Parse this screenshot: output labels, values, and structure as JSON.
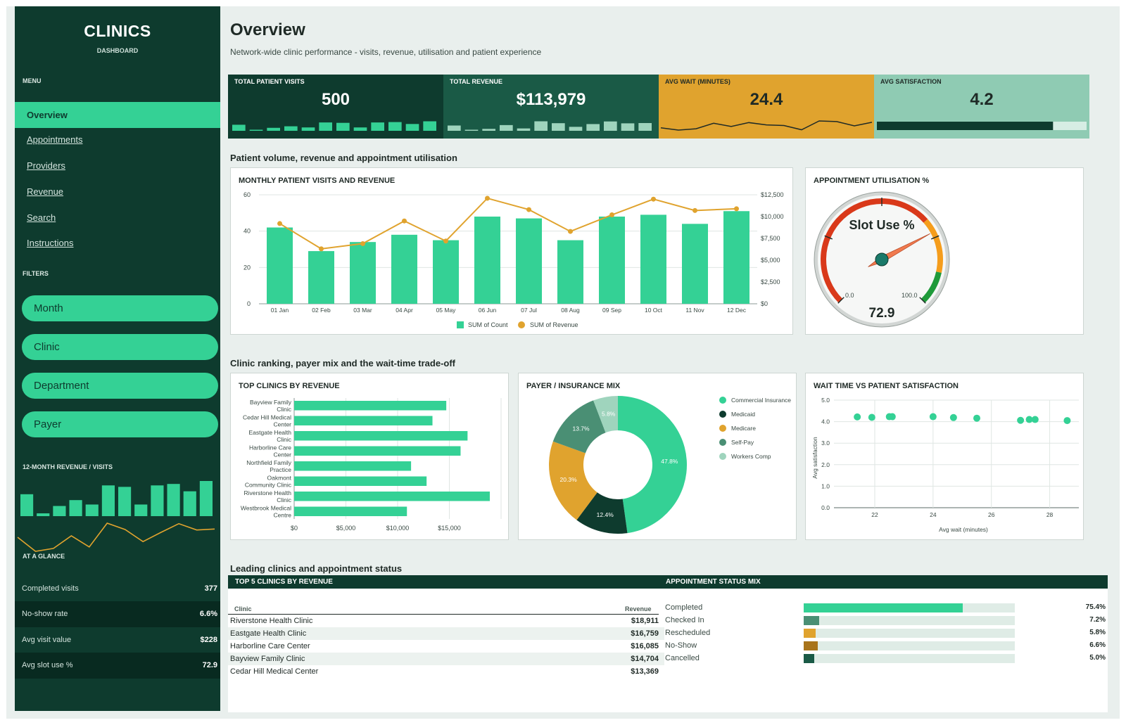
{
  "sidebar": {
    "title": "CLINICS",
    "subtitle": "DASHBOARD",
    "menu_label": "MENU",
    "menu": [
      "Overview",
      "Appointments",
      "Providers",
      "Revenue",
      "Search",
      "Instructions"
    ],
    "active_index": 0,
    "filters_label": "FILTERS",
    "filters": [
      "Month",
      "Clinic",
      "Department",
      "Payer"
    ],
    "mini_chart": {
      "title": "12-MONTH REVENUE  /  VISITS",
      "bars": [
        42,
        29,
        34,
        38,
        35,
        48,
        47,
        35,
        48,
        49,
        44,
        51
      ],
      "line": [
        9200,
        6300,
        6900,
        9500,
        7200,
        12100,
        10800,
        8300,
        10200,
        12000,
        10700,
        10900
      ]
    },
    "glance_label": "AT A GLANCE",
    "glance": [
      {
        "label": "Completed visits",
        "value": "377"
      },
      {
        "label": "No-show rate",
        "value": "6.6%"
      },
      {
        "label": "Avg visit value",
        "value": "$228"
      },
      {
        "label": "Avg slot use %",
        "value": "72.9"
      }
    ]
  },
  "header": {
    "title": "Overview",
    "subtitle": "Network-wide clinic performance - visits, revenue, utilisation and patient experience"
  },
  "kpis": [
    {
      "label": "TOTAL PATIENT VISITS",
      "value": "500",
      "bg": "#0e3b2e",
      "fg": "#ffffff",
      "spark": "bars",
      "spark_color": "#34d195",
      "spark_values": [
        42,
        29,
        34,
        38,
        35,
        48,
        47,
        35,
        48,
        49,
        44,
        51
      ]
    },
    {
      "label": "TOTAL REVENUE",
      "value": "$113,979",
      "bg": "#1a5a46",
      "fg": "#ffffff",
      "spark": "bars",
      "spark_color": "#9fd4bd",
      "spark_values": [
        9200,
        6300,
        6900,
        9500,
        7200,
        12100,
        10800,
        8300,
        10200,
        12000,
        10700,
        10900
      ]
    },
    {
      "label": "AVG WAIT (MINUTES)",
      "value": "24.4",
      "bg": "#e0a32e",
      "fg": "#1f2a26",
      "spark": "line",
      "spark_color": "#1f2a26",
      "spark_values": [
        23.5,
        22.8,
        23.2,
        24.9,
        23.9,
        25.1,
        24.4,
        24.2,
        22.9,
        25.6,
        25.4,
        24.1,
        25.2
      ]
    },
    {
      "label": "AVG SATISFACTION",
      "value": "4.2",
      "bg": "#8fcbb3",
      "fg": "#1f2a26",
      "spark": "progress",
      "spark_color": "#0e3b2e",
      "progress": 0.84
    }
  ],
  "sections": {
    "s1": "Patient volume, revenue and appointment utilisation",
    "s2": "Clinic ranking, payer mix and the wait-time trade-off",
    "s3": "Leading clinics and appointment status"
  },
  "colors": {
    "green": "#34d195",
    "dark": "#0e3b2e",
    "amber": "#e0a32e",
    "teal": "#4a8f74",
    "mint": "#9fd4bd"
  },
  "chart_data": [
    {
      "id": "combo",
      "type": "bar",
      "title": "MONTHLY PATIENT VISITS AND REVENUE",
      "categories": [
        "01 Jan",
        "02 Feb",
        "03 Mar",
        "04 Apr",
        "05 May",
        "06 Jun",
        "07 Jul",
        "08 Aug",
        "09 Sep",
        "10 Oct",
        "11 Nov",
        "12 Dec"
      ],
      "series": [
        {
          "name": "SUM of Count",
          "values": [
            42,
            29,
            34,
            38,
            35,
            48,
            47,
            35,
            48,
            49,
            44,
            51
          ]
        },
        {
          "name": "SUM of Revenue",
          "values": [
            9200,
            6300,
            6900,
            9500,
            7200,
            12100,
            10800,
            8300,
            10200,
            12000,
            10700,
            10900
          ]
        }
      ],
      "ylim": [
        0,
        60
      ],
      "yticks": [
        "0",
        "20",
        "40",
        "60"
      ],
      "y2lim": [
        0,
        12500
      ],
      "y2ticks": [
        "$0",
        "$2,500",
        "$5,000",
        "$7,500",
        "$10,000",
        "$12,500"
      ],
      "legend": "bottom",
      "grid": true
    },
    {
      "id": "gauge",
      "type": "gauge",
      "title": "APPOINTMENT UTILISATION %",
      "label": "Slot Use %",
      "value": 72.9,
      "value_text": "72.9",
      "min": 0,
      "max": 100,
      "min_text": "0.0",
      "max_text": "100.0"
    },
    {
      "id": "hbar",
      "type": "bar",
      "title": "TOP CLINICS BY REVENUE",
      "categories": [
        [
          "Bayview Family",
          "Clinic"
        ],
        [
          "Cedar Hill Medical",
          "Center"
        ],
        [
          "Eastgate Health",
          "Clinic"
        ],
        [
          "Harborline Care",
          "Center"
        ],
        [
          "Northfield Family",
          "Practice"
        ],
        [
          "Oakmont",
          "Community Clinic"
        ],
        [
          "Riverstone Health",
          "Clinic"
        ],
        [
          "Westbrook Medical",
          "Centre"
        ]
      ],
      "values": [
        14704,
        13369,
        16759,
        16085,
        11300,
        12800,
        18911,
        10900
      ],
      "xlim": [
        0,
        20000
      ],
      "xticks": [
        0,
        5000,
        10000,
        15000
      ],
      "xtick_labels": [
        "$0",
        "$5,000",
        "$10,000",
        "$15,000"
      ]
    },
    {
      "id": "donut",
      "type": "pie",
      "title": "PAYER / INSURANCE MIX",
      "labels": [
        "Commercial Insurance",
        "Medicaid",
        "Medicare",
        "Self-Pay",
        "Workers Comp"
      ],
      "values": [
        47.8,
        12.4,
        20.3,
        13.7,
        5.8
      ],
      "value_labels": [
        "47.8%",
        "12.4%",
        "20.3%",
        "13.7%",
        "5.8%"
      ],
      "colors": [
        "#34d195",
        "#0e3b2e",
        "#e0a32e",
        "#4a8f74",
        "#9fd4bd"
      ],
      "legend": "right"
    },
    {
      "id": "scatter",
      "type": "scatter",
      "title": "WAIT TIME VS PATIENT SATISFACTION",
      "xlabel": "Avg wait (minutes)",
      "ylabel": "Avg satisfaction",
      "x": [
        21.4,
        21.9,
        22.5,
        22.6,
        24.0,
        24.7,
        25.5,
        27.0,
        27.3,
        27.5,
        28.6
      ],
      "y": [
        4.22,
        4.2,
        4.23,
        4.23,
        4.23,
        4.19,
        4.16,
        4.06,
        4.1,
        4.1,
        4.05
      ],
      "xlim": [
        20.6,
        29.0
      ],
      "xticks": [
        22,
        24,
        26,
        28
      ],
      "ylim": [
        0,
        5
      ],
      "yticks": [
        "0.0",
        "1.0",
        "2.0",
        "3.0",
        "4.0",
        "5.0"
      ]
    }
  ],
  "bottom": {
    "top5_title": "TOP 5 CLINICS BY REVENUE",
    "col_clinic": "Clinic",
    "col_revenue": "Revenue",
    "rows": [
      {
        "clinic": "Riverstone Health Clinic",
        "revenue": "$18,911"
      },
      {
        "clinic": "Eastgate Health Clinic",
        "revenue": "$16,759"
      },
      {
        "clinic": "Harborline Care Center",
        "revenue": "$16,085"
      },
      {
        "clinic": "Bayview Family Clinic",
        "revenue": "$14,704"
      },
      {
        "clinic": "Cedar Hill Medical Center",
        "revenue": "$13,369"
      }
    ],
    "status_title": "APPOINTMENT STATUS MIX",
    "status": [
      {
        "label": "Completed",
        "pct": "75.4%",
        "value": 75.4,
        "color": "#34d195"
      },
      {
        "label": "Checked In",
        "pct": "7.2%",
        "value": 7.2,
        "color": "#4a8f74"
      },
      {
        "label": "Rescheduled",
        "pct": "5.8%",
        "value": 5.8,
        "color": "#e0a32e"
      },
      {
        "label": "No-Show",
        "pct": "6.6%",
        "value": 6.6,
        "color": "#a8741b"
      },
      {
        "label": "Cancelled",
        "pct": "5.0%",
        "value": 5.0,
        "color": "#1a5a46"
      }
    ]
  }
}
